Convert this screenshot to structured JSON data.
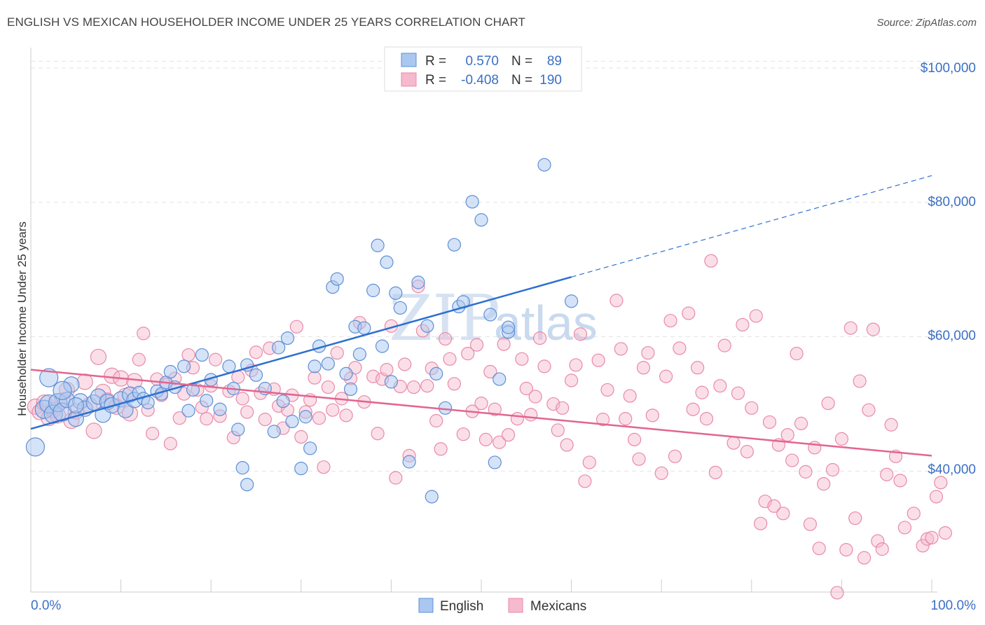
{
  "title": "ENGLISH VS MEXICAN HOUSEHOLDER INCOME UNDER 25 YEARS CORRELATION CHART",
  "source": "Source: ZipAtlas.com",
  "watermark": {
    "zip": "ZIP",
    "atlas": "atlas"
  },
  "legend": {
    "r_label": "R =",
    "n_label": "N =",
    "english": {
      "r": "0.570",
      "n": "89"
    },
    "mexicans": {
      "r": "-0.408",
      "n": "190"
    }
  },
  "colors": {
    "english_fill": "#a9c7f0",
    "english_stroke": "#5f8fd6",
    "english_line": "#2d6fd0",
    "mexicans_fill": "#f6b9cd",
    "mexicans_stroke": "#e88aa8",
    "mexicans_line": "#e2658f",
    "tick_label": "#3b6fc4"
  },
  "chart_data": {
    "type": "scatter",
    "title": "ENGLISH VS MEXICAN HOUSEHOLDER INCOME UNDER 25 YEARS CORRELATION CHART",
    "xlabel": "",
    "ylabel": "Householder Income Under 25 years",
    "xlim": [
      0,
      100
    ],
    "ylim": [
      22000,
      102000
    ],
    "x_tick_labels": [
      "0.0%",
      "100.0%"
    ],
    "y_ticks": [
      40000,
      60000,
      80000,
      100000
    ],
    "y_tick_labels": [
      "$40,000",
      "$60,000",
      "$80,000",
      "$100,000"
    ],
    "grid": "horizontal dashed",
    "legend_position": "top-center",
    "series": [
      {
        "name": "English",
        "r": 0.57,
        "n": 89,
        "trend": {
          "x": [
            0,
            60
          ],
          "y": [
            46300,
            68900
          ],
          "dashed_extension_to": [
            100,
            84000
          ]
        },
        "points": [
          [
            0.5,
            43.6
          ],
          [
            1.5,
            49.2
          ],
          [
            2,
            50
          ],
          [
            2.5,
            48.5
          ],
          [
            2,
            53.9
          ],
          [
            3,
            50.2
          ],
          [
            3.5,
            48.8
          ],
          [
            4,
            50.6
          ],
          [
            4.5,
            52.9
          ],
          [
            5,
            47.8
          ],
          [
            5.5,
            50.4
          ],
          [
            6,
            49.3
          ],
          [
            7,
            50.2
          ],
          [
            7.5,
            51.1
          ],
          [
            8,
            48.4
          ],
          [
            8.5,
            50.3
          ],
          [
            9,
            49.8
          ],
          [
            10,
            50.7
          ],
          [
            10.5,
            49.1
          ],
          [
            11,
            51.4
          ],
          [
            11.5,
            50.6
          ],
          [
            12,
            51.7
          ],
          [
            12.5,
            50.8
          ],
          [
            13,
            50.2
          ],
          [
            14,
            51.9
          ],
          [
            14.5,
            51.5
          ],
          [
            15,
            53.2
          ],
          [
            15.5,
            54.8
          ],
          [
            16,
            52.5
          ],
          [
            17,
            55.6
          ],
          [
            17.5,
            49
          ],
          [
            18,
            52.1
          ],
          [
            19,
            57.3
          ],
          [
            19.5,
            50.5
          ],
          [
            20,
            53.6
          ],
          [
            21,
            49.2
          ],
          [
            22,
            55.6
          ],
          [
            22.5,
            52.3
          ],
          [
            23,
            46.2
          ],
          [
            23.5,
            40.5
          ],
          [
            24,
            55.8
          ],
          [
            24,
            38
          ],
          [
            25,
            54.3
          ],
          [
            26,
            52.3
          ],
          [
            27,
            45.9
          ],
          [
            27.5,
            58.4
          ],
          [
            28,
            50.4
          ],
          [
            28.5,
            59.8
          ],
          [
            29,
            47.4
          ],
          [
            30,
            40.4
          ],
          [
            30.5,
            48.1
          ],
          [
            31,
            43.4
          ],
          [
            31.5,
            55.6
          ],
          [
            32,
            58.6
          ],
          [
            33,
            56
          ],
          [
            33.5,
            67.4
          ],
          [
            34,
            68.6
          ],
          [
            35,
            54.5
          ],
          [
            35.5,
            52.2
          ],
          [
            36,
            61.5
          ],
          [
            36.5,
            57.4
          ],
          [
            37,
            61.3
          ],
          [
            38,
            66.9
          ],
          [
            38.5,
            73.6
          ],
          [
            39,
            58.6
          ],
          [
            39.5,
            71.1
          ],
          [
            40,
            53.3
          ],
          [
            40.5,
            66.5
          ],
          [
            41,
            64.3
          ],
          [
            42,
            41.4
          ],
          [
            43,
            68.1
          ],
          [
            44,
            61.6
          ],
          [
            44.5,
            36.2
          ],
          [
            45,
            54.5
          ],
          [
            46,
            49.4
          ],
          [
            47,
            73.7
          ],
          [
            47.5,
            64.5
          ],
          [
            48,
            65.2
          ],
          [
            49,
            80.1
          ],
          [
            50,
            77.4
          ],
          [
            51,
            63.3
          ],
          [
            51.5,
            41.3
          ],
          [
            52,
            53.7
          ],
          [
            53,
            60.7
          ],
          [
            53,
            61.4
          ],
          [
            57,
            85.6
          ],
          [
            60,
            65.3
          ],
          [
            3.5,
            52
          ],
          [
            5,
            49.8
          ]
        ]
      },
      {
        "name": "Mexicans",
        "r": -0.408,
        "n": 190,
        "trend": {
          "x": [
            0,
            100
          ],
          "y": [
            55100,
            42300
          ]
        },
        "points": [
          [
            0.5,
            49.6
          ],
          [
            1,
            48.8
          ],
          [
            1.5,
            50.2
          ],
          [
            2,
            47.9
          ],
          [
            2.5,
            49.1
          ],
          [
            3,
            48.3
          ],
          [
            3.5,
            50.5
          ],
          [
            4,
            52.1
          ],
          [
            4.5,
            47.5
          ],
          [
            5,
            48.9
          ],
          [
            6,
            53.3
          ],
          [
            6.5,
            49.8
          ],
          [
            7,
            46
          ],
          [
            7.5,
            57
          ],
          [
            8,
            51.8
          ],
          [
            8.5,
            50.5
          ],
          [
            9,
            54.2
          ],
          [
            9.5,
            49.6
          ],
          [
            10,
            53.8
          ],
          [
            10.5,
            51.2
          ],
          [
            11,
            48.6
          ],
          [
            11.5,
            53.4
          ],
          [
            12,
            56.6
          ],
          [
            12.5,
            60.5
          ],
          [
            13,
            49.1
          ],
          [
            13.5,
            45.6
          ],
          [
            14,
            53.7
          ],
          [
            14.5,
            51.3
          ],
          [
            15,
            52.9
          ],
          [
            15.5,
            44.1
          ],
          [
            16,
            53.8
          ],
          [
            16.5,
            47.9
          ],
          [
            17,
            51.5
          ],
          [
            17.5,
            57.3
          ],
          [
            18,
            55.4
          ],
          [
            18.5,
            52.1
          ],
          [
            19,
            49.5
          ],
          [
            19.5,
            47.8
          ],
          [
            20,
            52.7
          ],
          [
            20.5,
            56.6
          ],
          [
            21,
            48.2
          ],
          [
            22,
            51.9
          ],
          [
            22.5,
            45
          ],
          [
            23,
            54
          ],
          [
            23.5,
            50.8
          ],
          [
            24,
            48.8
          ],
          [
            24.5,
            55
          ],
          [
            25,
            57.7
          ],
          [
            25.5,
            51.6
          ],
          [
            26,
            47.7
          ],
          [
            26.5,
            58.3
          ],
          [
            27,
            52.2
          ],
          [
            27.5,
            49.7
          ],
          [
            28,
            46.4
          ],
          [
            28.5,
            49.1
          ],
          [
            29,
            51.3
          ],
          [
            29.5,
            61.5
          ],
          [
            30,
            45.1
          ],
          [
            30.5,
            48.8
          ],
          [
            31,
            50.6
          ],
          [
            31.5,
            53.9
          ],
          [
            32,
            47.9
          ],
          [
            32.5,
            40.6
          ],
          [
            33,
            52.5
          ],
          [
            33.5,
            49.1
          ],
          [
            34,
            57.6
          ],
          [
            34.5,
            50.8
          ],
          [
            35,
            48.3
          ],
          [
            35.5,
            53.8
          ],
          [
            36,
            55.4
          ],
          [
            36.5,
            62.1
          ],
          [
            37,
            50.3
          ],
          [
            38,
            54.1
          ],
          [
            38.5,
            45.6
          ],
          [
            39,
            53.7
          ],
          [
            39.5,
            55.1
          ],
          [
            40,
            61.6
          ],
          [
            40.5,
            39
          ],
          [
            41,
            52.6
          ],
          [
            41.5,
            55.9
          ],
          [
            42,
            42.3
          ],
          [
            42.5,
            52.5
          ],
          [
            43,
            67.5
          ],
          [
            43.5,
            60.9
          ],
          [
            44,
            52.7
          ],
          [
            44.5,
            55.3
          ],
          [
            45,
            47.5
          ],
          [
            45.5,
            43.3
          ],
          [
            46,
            59.7
          ],
          [
            46.5,
            56.7
          ],
          [
            47,
            53
          ],
          [
            48,
            45.5
          ],
          [
            48.5,
            57.5
          ],
          [
            49,
            48.9
          ],
          [
            49.5,
            58.8
          ],
          [
            50,
            50.1
          ],
          [
            50.5,
            44.7
          ],
          [
            51,
            54.8
          ],
          [
            51.5,
            49.2
          ],
          [
            52,
            44.3
          ],
          [
            52.5,
            58.9
          ],
          [
            53,
            45.4
          ],
          [
            54,
            47.8
          ],
          [
            54.5,
            56.7
          ],
          [
            55,
            52.3
          ],
          [
            55.5,
            48.4
          ],
          [
            56,
            51.1
          ],
          [
            56.5,
            59.8
          ],
          [
            57,
            55.6
          ],
          [
            58,
            50
          ],
          [
            58.5,
            46.1
          ],
          [
            59,
            49.4
          ],
          [
            59.5,
            43.9
          ],
          [
            60,
            53.5
          ],
          [
            60.5,
            55.8
          ],
          [
            61,
            60.4
          ],
          [
            61.5,
            38.5
          ],
          [
            62,
            41.3
          ],
          [
            63,
            56.5
          ],
          [
            63.5,
            47.7
          ],
          [
            64,
            52.1
          ],
          [
            65,
            65.4
          ],
          [
            65.5,
            58.2
          ],
          [
            66,
            47.8
          ],
          [
            66.5,
            51.2
          ],
          [
            67,
            44.7
          ],
          [
            67.5,
            41.8
          ],
          [
            68,
            55.4
          ],
          [
            68.5,
            57.6
          ],
          [
            69,
            48.3
          ],
          [
            70,
            39.7
          ],
          [
            70.5,
            54.1
          ],
          [
            71,
            62.4
          ],
          [
            71.5,
            42.2
          ],
          [
            72,
            58.3
          ],
          [
            73,
            63.5
          ],
          [
            73.5,
            49.2
          ],
          [
            74,
            55.4
          ],
          [
            74.5,
            51.7
          ],
          [
            75,
            47.8
          ],
          [
            75.5,
            71.3
          ],
          [
            76,
            39.8
          ],
          [
            76.5,
            52.7
          ],
          [
            77,
            58.7
          ],
          [
            78,
            44.2
          ],
          [
            78.5,
            51.6
          ],
          [
            79,
            61.8
          ],
          [
            79.5,
            42.9
          ],
          [
            80,
            49.4
          ],
          [
            80.5,
            63.1
          ],
          [
            81,
            32.2
          ],
          [
            81.5,
            35.5
          ],
          [
            82,
            47.3
          ],
          [
            82.5,
            34.8
          ],
          [
            83,
            43.9
          ],
          [
            83.5,
            33.7
          ],
          [
            84,
            45.4
          ],
          [
            84.5,
            41.6
          ],
          [
            85,
            57.5
          ],
          [
            85.5,
            47.1
          ],
          [
            86,
            39.9
          ],
          [
            86.5,
            32.1
          ],
          [
            87,
            43.5
          ],
          [
            87.5,
            28.5
          ],
          [
            88,
            38.1
          ],
          [
            88.5,
            50.1
          ],
          [
            89,
            40.2
          ],
          [
            89.5,
            21.9
          ],
          [
            90,
            44.8
          ],
          [
            90.5,
            28.3
          ],
          [
            91,
            61.3
          ],
          [
            91.5,
            33
          ],
          [
            92,
            53.4
          ],
          [
            92.5,
            27.1
          ],
          [
            93,
            49.1
          ],
          [
            94,
            29.6
          ],
          [
            94.5,
            28.4
          ],
          [
            95,
            39.5
          ],
          [
            95.5,
            46.9
          ],
          [
            96,
            42.2
          ],
          [
            96.5,
            38.6
          ],
          [
            97,
            31.6
          ],
          [
            98,
            33.7
          ],
          [
            99,
            28.9
          ],
          [
            99.5,
            29.9
          ],
          [
            100,
            30.1
          ],
          [
            100.5,
            36.2
          ],
          [
            101,
            38.3
          ],
          [
            101.5,
            30.8
          ],
          [
            93.5,
            61.1
          ]
        ]
      }
    ]
  },
  "bottom_legend": {
    "english": "English",
    "mexicans": "Mexicans"
  }
}
